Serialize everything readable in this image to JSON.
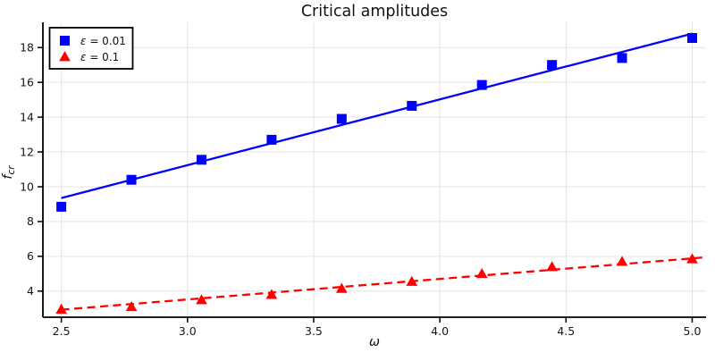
{
  "chart_data": {
    "type": "scatter",
    "title": "Critical amplitudes",
    "xlabel": "ω",
    "ylabel": "f_cr",
    "ylabel_parts": {
      "main": "f",
      "subscript": "cr"
    },
    "x": [
      2.5,
      2.7778,
      3.0556,
      3.3333,
      3.6111,
      3.8889,
      4.1667,
      4.4444,
      4.7222,
      5.0
    ],
    "series": [
      {
        "name": "ε = 0.01",
        "marker": "square",
        "color": "#0000ff",
        "line_style": "solid",
        "values": [
          8.85,
          10.4,
          11.55,
          12.7,
          13.9,
          14.65,
          15.85,
          17.0,
          17.4,
          18.55
        ],
        "fit_line": {
          "x": [
            2.5,
            5.0
          ],
          "y": [
            9.35,
            18.8
          ]
        }
      },
      {
        "name": "ε = 0.1",
        "marker": "triangle",
        "color": "#ff0000",
        "line_style": "dashed",
        "values": [
          2.95,
          3.1,
          3.5,
          3.8,
          4.15,
          4.55,
          5.0,
          5.4,
          5.7,
          5.85
        ],
        "fit_line": {
          "x": [
            2.5,
            5.05
          ],
          "y": [
            2.93,
            5.94
          ]
        }
      }
    ],
    "x_ticks": {
      "values": [
        2.5,
        3.0,
        3.5,
        4.0,
        4.5,
        5.0
      ],
      "labels": [
        "2.5",
        "3.0",
        "3.5",
        "4.0",
        "4.5",
        "5.0"
      ]
    },
    "y_ticks": {
      "values": [
        4,
        6,
        8,
        10,
        12,
        14,
        16,
        18
      ],
      "labels": [
        "4",
        "6",
        "8",
        "10",
        "12",
        "14",
        "16",
        "18"
      ]
    },
    "xlim": [
      2.427,
      5.055
    ],
    "ylim": [
      2.5,
      19.45
    ],
    "grid": true,
    "legend_position": "top-left",
    "colors": {
      "grid": "#e4e4e4",
      "axis": "#000000",
      "text": "#131313",
      "background": "#ffffff",
      "legend_border": "#000000",
      "legend_background": "#ffffff"
    }
  }
}
